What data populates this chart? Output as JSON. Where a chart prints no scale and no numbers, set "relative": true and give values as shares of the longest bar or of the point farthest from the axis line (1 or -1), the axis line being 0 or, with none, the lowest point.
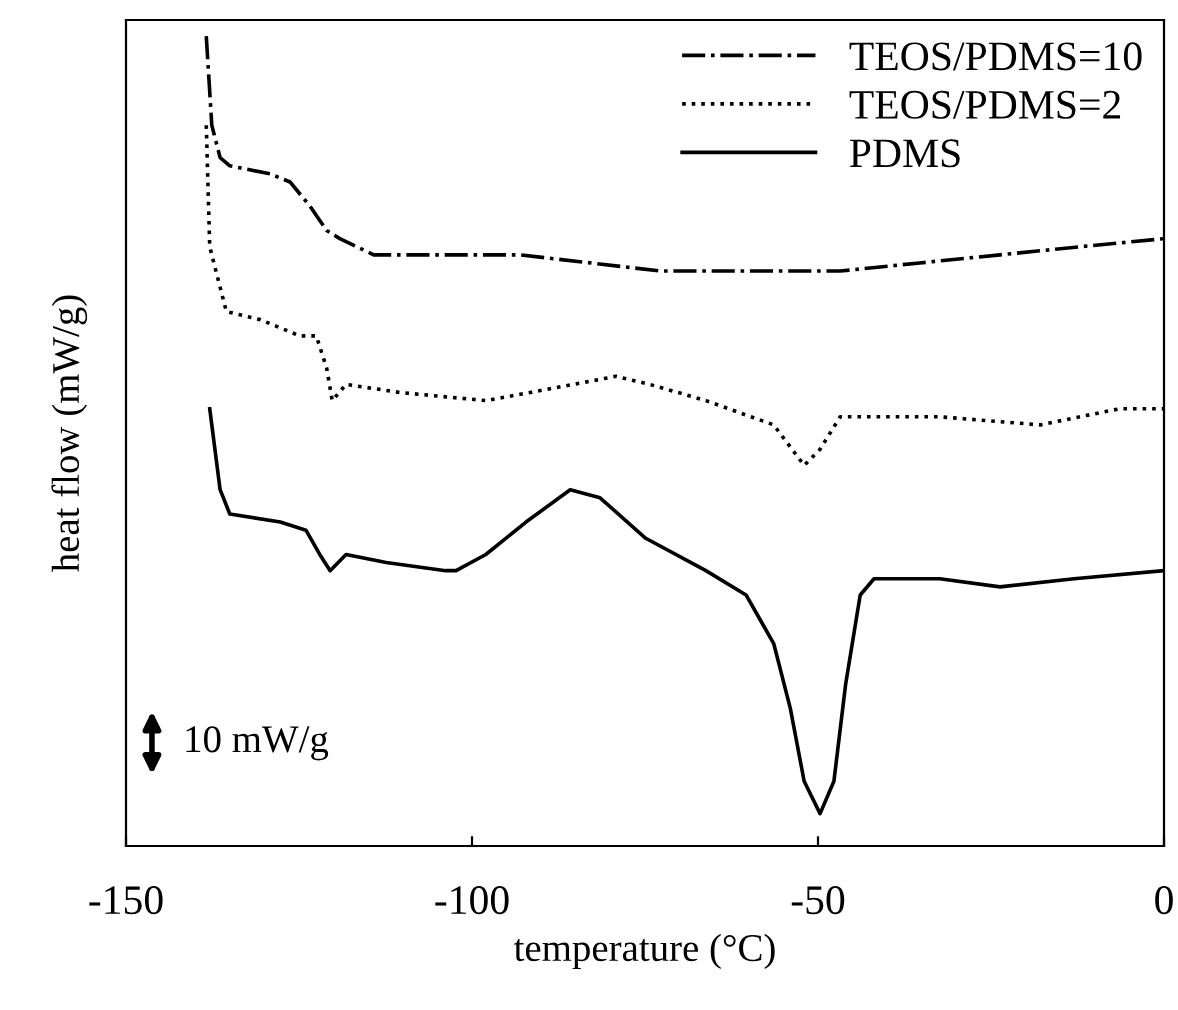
{
  "chart_data": {
    "type": "line",
    "relative": true,
    "xlabel": "temperature (°C)",
    "ylabel": "heat flow (mW/g)",
    "xlim": [
      -150,
      0
    ],
    "xticks": [
      -150,
      -100,
      -50,
      0
    ],
    "legend": "top right",
    "grid": false,
    "marker": "none",
    "annotations": [
      "10 mW/g"
    ],
    "series": [
      {
        "name": "TEOS/PDMS=10",
        "color": "#000000",
        "line_style": "dashdot",
        "x": [
          -138.4,
          -137.6,
          -136.4,
          -135,
          -129.2,
          -126.3,
          -123.4,
          -121,
          -119.1,
          -114.2,
          -104.6,
          -93,
          -72.8,
          -56.4,
          -46.8,
          -35.3,
          -23.7,
          -12.1,
          0
        ],
        "values": [
          1.0,
          0.89,
          0.85,
          0.84,
          0.83,
          0.82,
          0.79,
          0.76,
          0.75,
          0.73,
          0.73,
          0.73,
          0.71,
          0.71,
          0.71,
          0.72,
          0.73,
          0.74,
          0.75
        ]
      },
      {
        "name": "TEOS/PDMS=2",
        "color": "#000000",
        "line_style": "dotted",
        "x": [
          -138.4,
          -137.9,
          -135.5,
          -130.6,
          -124.9,
          -122.5,
          -121,
          -120.2,
          -118.2,
          -110.4,
          -98,
          -91.6,
          -79.2,
          -74.3,
          -66.2,
          -56.4,
          -52,
          -49.7,
          -46.8,
          -32.4,
          -17.9,
          -6.4,
          0
        ],
        "values": [
          0.89,
          0.74,
          0.66,
          0.65,
          0.63,
          0.63,
          0.59,
          0.55,
          0.57,
          0.56,
          0.55,
          0.56,
          0.58,
          0.57,
          0.55,
          0.52,
          0.47,
          0.49,
          0.53,
          0.53,
          0.52,
          0.54,
          0.54
        ]
      },
      {
        "name": "PDMS",
        "color": "#000000",
        "line_style": "solid",
        "x": [
          -137.9,
          -136.4,
          -135,
          -127.7,
          -124,
          -122,
          -120.5,
          -118.2,
          -112.4,
          -103.8,
          -102.3,
          -98,
          -92.2,
          -85.8,
          -81.5,
          -74.9,
          -66.2,
          -60.4,
          -56.4,
          -54,
          -52,
          -49.7,
          -47.7,
          -46,
          -43.9,
          -41.9,
          -32.4,
          -23.7,
          -13,
          0
        ],
        "values": [
          0.54,
          0.44,
          0.41,
          0.4,
          0.39,
          0.36,
          0.34,
          0.36,
          0.35,
          0.34,
          0.34,
          0.36,
          0.4,
          0.44,
          0.43,
          0.38,
          0.34,
          0.31,
          0.25,
          0.17,
          0.08,
          0.04,
          0.08,
          0.2,
          0.31,
          0.33,
          0.33,
          0.32,
          0.33,
          0.34
        ]
      }
    ]
  }
}
